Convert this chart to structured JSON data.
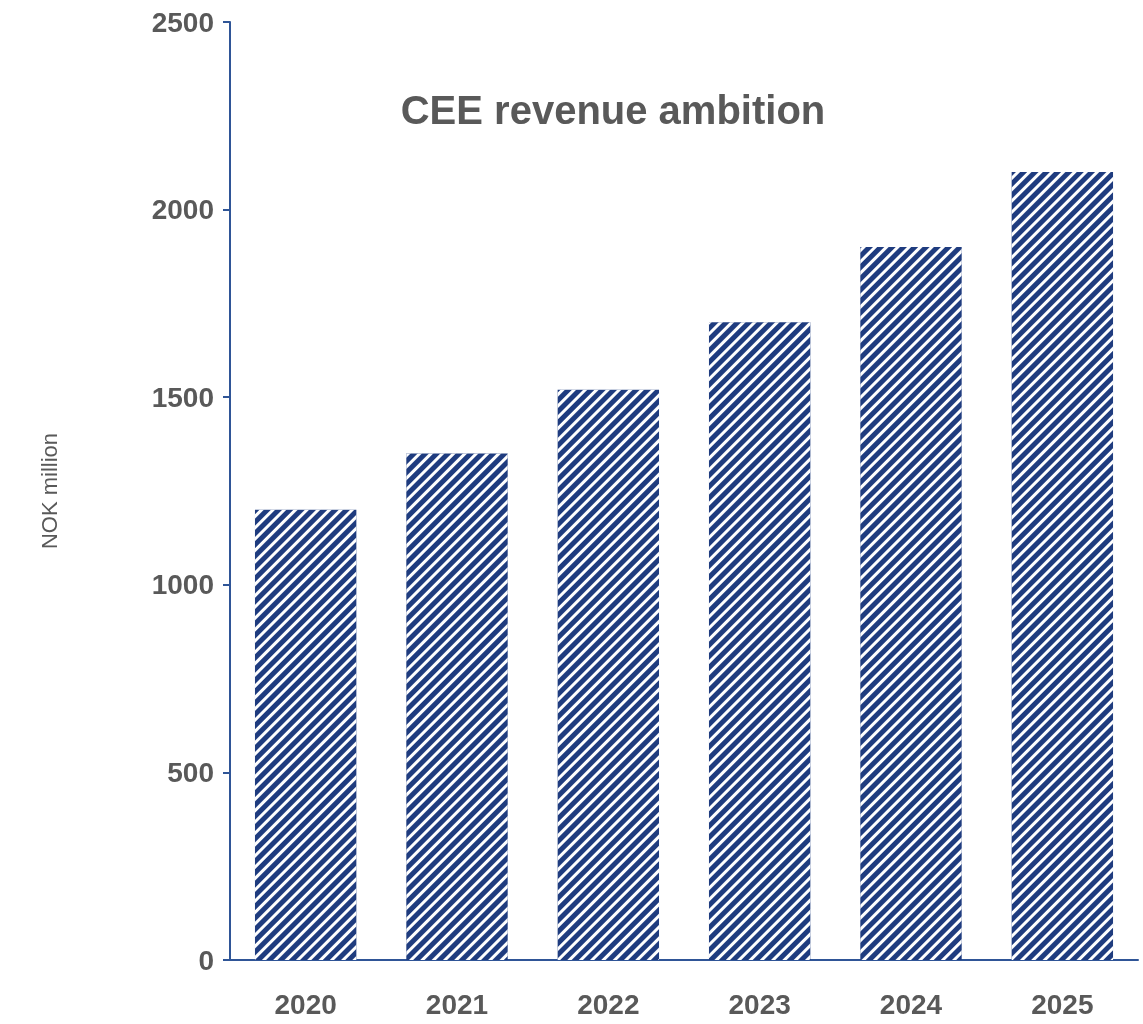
{
  "chart_data": {
    "type": "bar",
    "title": "CEE revenue ambition",
    "ylabel": "NOK million",
    "categories": [
      "2020",
      "2021",
      "2022",
      "2023",
      "2024",
      "2025"
    ],
    "values": [
      1200,
      1350,
      1520,
      1700,
      1900,
      2100
    ],
    "color": "#1f3c7f",
    "ylim": [
      0,
      2500
    ],
    "yticks": [
      0,
      500,
      1000,
      1500,
      2000,
      2500
    ],
    "grid": false
  }
}
